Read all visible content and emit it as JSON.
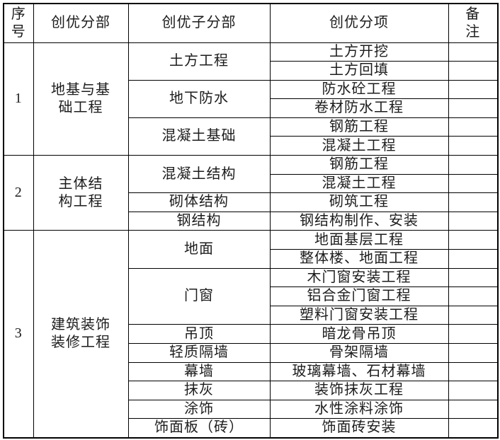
{
  "table": {
    "headers": [
      "序\n号",
      "创优分部",
      "创优子分部",
      "创优分项",
      "备\n注"
    ],
    "remark_value": "",
    "sections": [
      {
        "no": "1",
        "division": "地基与基\n础工程",
        "subdivisions": [
          {
            "name": "土方工程",
            "items": [
              "土方开挖",
              "土方回填"
            ]
          },
          {
            "name": "地下防水",
            "items": [
              "防水砼工程",
              "卷材防水工程"
            ]
          },
          {
            "name": "混凝土基础",
            "items": [
              "钢筋工程",
              "混凝土工程"
            ]
          }
        ]
      },
      {
        "no": "2",
        "division": "主体结\n构工程",
        "subdivisions": [
          {
            "name": "混凝土结构",
            "items": [
              "钢筋工程",
              "混凝土工程"
            ]
          },
          {
            "name": "砌体结构",
            "items": [
              "砌筑工程"
            ]
          },
          {
            "name": "钢结构",
            "items": [
              "钢结构制作、安装"
            ]
          }
        ]
      },
      {
        "no": "3",
        "division": "建筑装饰\n装修工程",
        "subdivisions": [
          {
            "name": "地面",
            "items": [
              "地面基层工程",
              "整体楼、地面工程"
            ]
          },
          {
            "name": "门窗",
            "items": [
              "木门窗安装工程",
              "铝合金门窗工程",
              "塑料门窗安装工程"
            ]
          },
          {
            "name": "吊顶",
            "items": [
              "暗龙骨吊顶"
            ]
          },
          {
            "name": "轻质隔墙",
            "items": [
              "骨架隔墙"
            ]
          },
          {
            "name": "幕墙",
            "items": [
              "玻璃幕墙、石材幕墙"
            ]
          },
          {
            "name": "抹灰",
            "items": [
              "装饰抹灰工程"
            ]
          },
          {
            "name": "涂饰",
            "items": [
              "水性涂料涂饰"
            ]
          },
          {
            "name": "饰面板（砖）",
            "items": [
              "饰面砖安装"
            ]
          }
        ]
      }
    ]
  }
}
